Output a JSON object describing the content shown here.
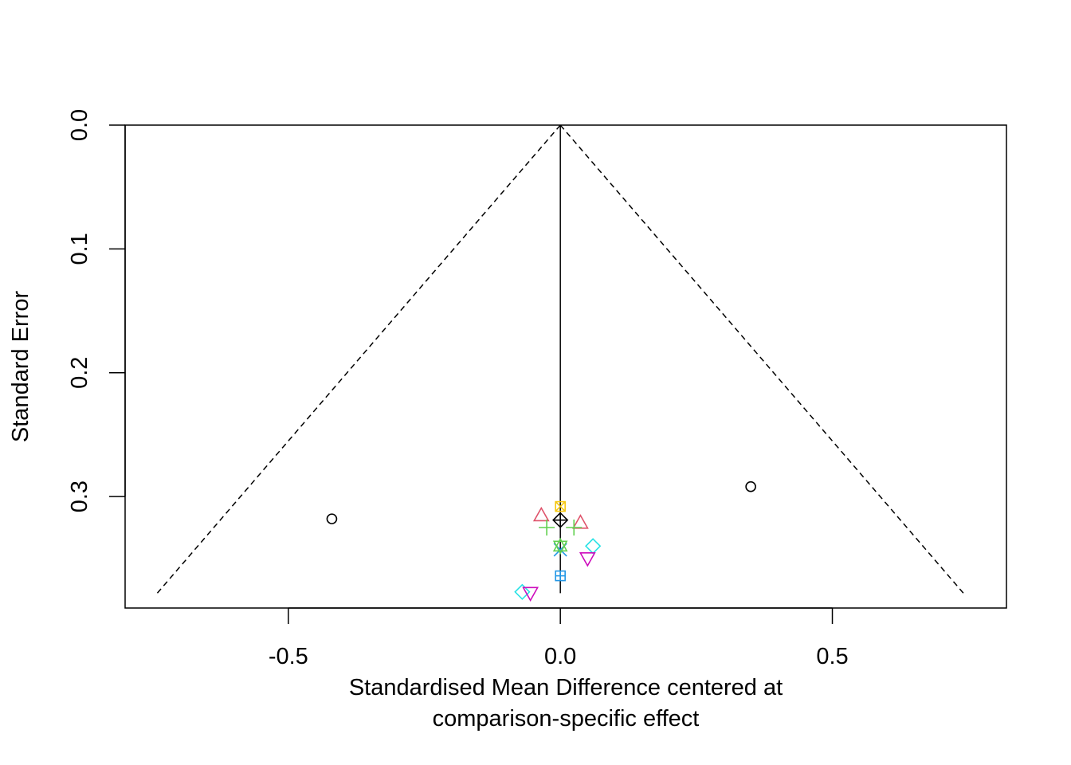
{
  "chart_data": {
    "type": "scatter",
    "subtype": "funnel",
    "title": "",
    "xlabel_line1": "Standardised Mean Difference centered at",
    "xlabel_line2": "comparison-specific effect",
    "ylabel": "Standard Error",
    "xlim": [
      -0.8,
      0.82
    ],
    "ylim": [
      0.0,
      0.39
    ],
    "y_reversed": true,
    "grid": false,
    "legend": "none",
    "x_ticks": [
      {
        "value": -0.5,
        "label": "-0.5"
      },
      {
        "value": 0.0,
        "label": "0.0"
      },
      {
        "value": 0.5,
        "label": "0.5"
      }
    ],
    "y_ticks": [
      {
        "value": 0.0,
        "label": "0.0"
      },
      {
        "value": 0.1,
        "label": "0.1"
      },
      {
        "value": 0.2,
        "label": "0.2"
      },
      {
        "value": 0.3,
        "label": "0.3"
      }
    ],
    "center_line": {
      "x": 0.0,
      "se_max": 0.378
    },
    "funnel": {
      "apex_se": 0.0,
      "max_se": 0.378,
      "multiplier": 1.96
    },
    "points": [
      {
        "x": -0.42,
        "se": 0.318,
        "shape": "circle",
        "color": "#000000"
      },
      {
        "x": 0.35,
        "se": 0.292,
        "shape": "circle",
        "color": "#000000"
      },
      {
        "x": -0.035,
        "se": 0.315,
        "shape": "triangle",
        "color": "#DF536B"
      },
      {
        "x": 0.037,
        "se": 0.321,
        "shape": "triangle",
        "color": "#DF536B"
      },
      {
        "x": -0.025,
        "se": 0.325,
        "shape": "plus",
        "color": "#61D04F"
      },
      {
        "x": 0.025,
        "se": 0.325,
        "shape": "plus",
        "color": "#61D04F"
      },
      {
        "x": 0.0,
        "se": 0.343,
        "shape": "cross",
        "color": "#2297E6"
      },
      {
        "x": 0.0,
        "se": 0.34,
        "shape": "star",
        "color": "#61D04F"
      },
      {
        "x": 0.0,
        "se": 0.308,
        "shape": "square-x",
        "color": "#F5C710"
      },
      {
        "x": 0.06,
        "se": 0.34,
        "shape": "diamond",
        "color": "#28E2E5"
      },
      {
        "x": -0.07,
        "se": 0.377,
        "shape": "diamond",
        "color": "#28E2E5"
      },
      {
        "x": 0.05,
        "se": 0.35,
        "shape": "triangle-down",
        "color": "#CD0BBC"
      },
      {
        "x": -0.055,
        "se": 0.378,
        "shape": "triangle-down",
        "color": "#CD0BBC"
      },
      {
        "x": 0.0,
        "se": 0.364,
        "shape": "square-plus",
        "color": "#2297E6"
      },
      {
        "x": 0.0,
        "se": 0.319,
        "shape": "diamond-plus",
        "color": "#000000"
      }
    ]
  }
}
